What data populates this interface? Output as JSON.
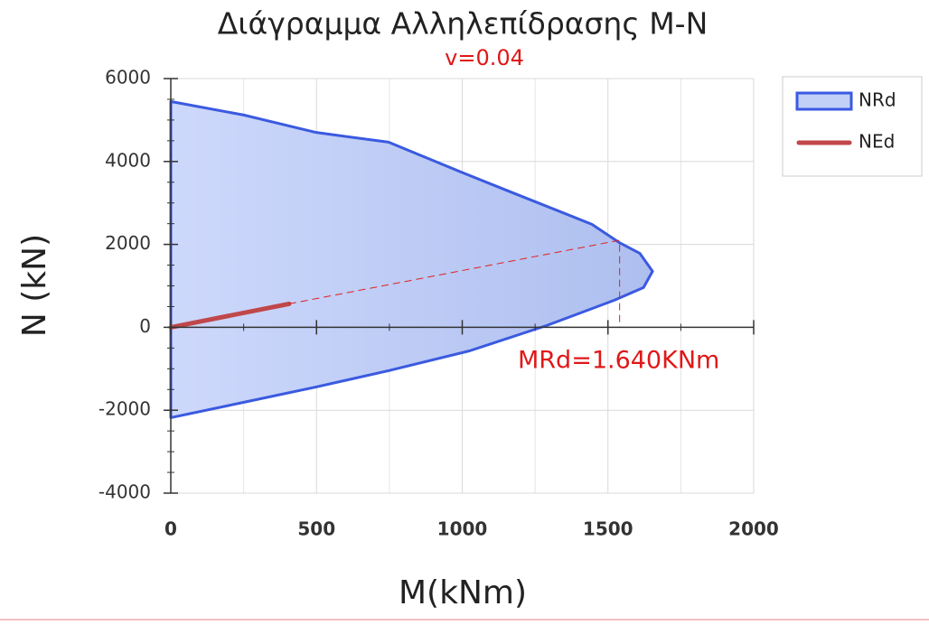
{
  "chart_data": {
    "type": "area",
    "title": "Διάγραμμα Αλληλεπίδρασης M-N",
    "subtitle": "v=0.04",
    "annotation": "MRd=1.640KNm",
    "x_label": "M(kNm)",
    "y_label": "N (kN)",
    "xlim": [
      0,
      2000
    ],
    "ylim": [
      -4000,
      6000
    ],
    "xticks": [
      0,
      500,
      1000,
      1500,
      2000
    ],
    "yticks": [
      -4000,
      -2000,
      0,
      2000,
      4000,
      6000
    ],
    "xminorticks": [
      250,
      750,
      1250,
      1750
    ],
    "yminorticks": [
      -3500,
      -3000,
      -2500,
      -1500,
      -1000,
      -500,
      500,
      1000,
      1500,
      2500,
      3000,
      3500,
      4500,
      5000,
      5500
    ],
    "grid": true,
    "legend": "right",
    "series": [
      {
        "name": "NRd",
        "color": "#3a5ae0",
        "fill": "#c2cff7",
        "x": [
          0,
          251,
          499,
          747,
          995,
          1150,
          1445,
          1538,
          1609,
          1653,
          1622,
          1522,
          1398,
          1290,
          1026,
          747,
          499,
          251,
          0
        ],
        "values": [
          5447,
          5120,
          4700,
          4466,
          3747,
          3311,
          2484,
          2048,
          1786,
          1351,
          959,
          654,
          327,
          44,
          -566,
          -1046,
          -1438,
          -1808,
          -2179
        ]
      },
      {
        "name": "NEd",
        "color": "#c0474a",
        "x": [
          0,
          406
        ],
        "values": [
          0,
          566
        ]
      }
    ],
    "guide": {
      "color": "#e02020",
      "x": [
        406,
        1540,
        1540
      ],
      "values": [
        566,
        2100,
        0
      ]
    }
  }
}
